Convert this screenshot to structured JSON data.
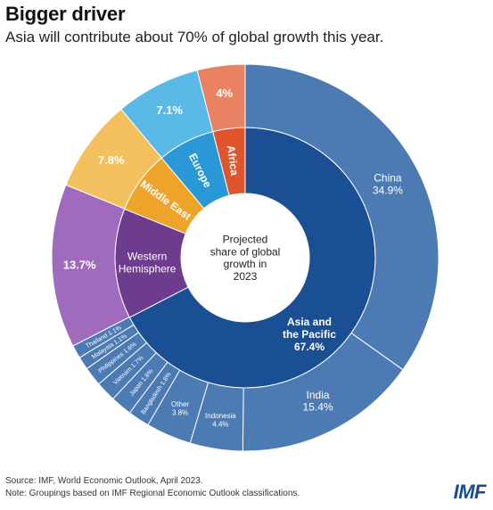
{
  "header": {
    "title": "Bigger driver",
    "subtitle": "Asia will contribute about 70% of global growth this year."
  },
  "footer": {
    "source": "Source: IMF, World Economic Outlook, April 2023.",
    "note": "Note: Groupings based on IMF Regional Economic Outlook classifications.",
    "logo": "IMF"
  },
  "chart_data": {
    "type": "pie",
    "subtype": "sunburst-donut",
    "center_label": [
      "Projected",
      "share of global",
      "growth in",
      "2023"
    ],
    "inner_ring": [
      {
        "name": "Asia and the Pacific",
        "value": 67.4,
        "label": "Asia and\nthe Pacific\n67.4%",
        "color": "#1b4f93"
      },
      {
        "name": "Western Hemisphere",
        "value": 13.7,
        "label": "Western\nHemisphere",
        "color": "#6d3c8f"
      },
      {
        "name": "Middle East",
        "value": 7.8,
        "label": "Middle East",
        "color": "#eea42a"
      },
      {
        "name": "Europe",
        "value": 7.1,
        "label": "Europe",
        "color": "#2a97d6"
      },
      {
        "name": "Africa",
        "value": 4.0,
        "label": "Africa",
        "color": "#e0552e"
      }
    ],
    "outer_ring": [
      {
        "name": "China",
        "value": 34.9,
        "label": "China\n34.9%",
        "color": "#4c7bb4"
      },
      {
        "name": "India",
        "value": 15.4,
        "label": "India\n15.4%",
        "color": "#4c7bb4"
      },
      {
        "name": "Indonesia",
        "value": 4.4,
        "label": "Indonesia\n4.4%",
        "color": "#4c7bb4"
      },
      {
        "name": "Other",
        "value": 3.8,
        "label": "Other\n3.8%",
        "color": "#4c7bb4"
      },
      {
        "name": "Bangladesh",
        "value": 1.8,
        "label": "Bangladesh 1.8%",
        "color": "#4c7bb4"
      },
      {
        "name": "Japan",
        "value": 1.8,
        "label": "Japan 1.8%",
        "color": "#4c7bb4"
      },
      {
        "name": "Vietnam",
        "value": 1.7,
        "label": "Vietnam 1.7%",
        "color": "#4c7bb4"
      },
      {
        "name": "Philippines",
        "value": 1.6,
        "label": "Philippines 1.6%",
        "color": "#4c7bb4"
      },
      {
        "name": "Malaysia",
        "value": 1.1,
        "label": "Malaysia 1.1%",
        "color": "#4c7bb4"
      },
      {
        "name": "Thailand",
        "value": 1.1,
        "label": "Thailand 1.1%",
        "color": "#4c7bb4"
      },
      {
        "name": "Western Hemisphere",
        "value": 13.7,
        "label": "13.7%",
        "color": "#a06bbd"
      },
      {
        "name": "Middle East",
        "value": 7.8,
        "label": "7.8%",
        "color": "#f4c05e"
      },
      {
        "name": "Europe",
        "value": 7.1,
        "label": "7.1%",
        "color": "#5ab9e6"
      },
      {
        "name": "Africa",
        "value": 4.0,
        "label": "4%",
        "color": "#e98260"
      }
    ]
  }
}
